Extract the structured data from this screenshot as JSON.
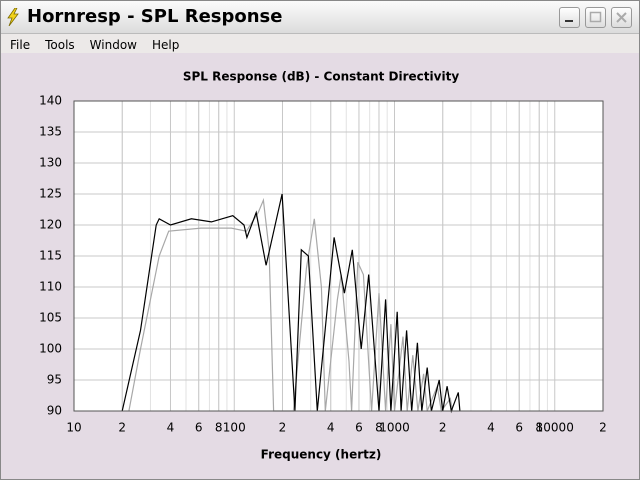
{
  "window": {
    "title": "Hornresp - SPL Response"
  },
  "menu": [
    "File",
    "Tools",
    "Window",
    "Help"
  ],
  "chart_data": {
    "type": "line",
    "title": "SPL Response (dB) - Constant Directivity",
    "x_label": "Frequency (hertz)",
    "x_scale": "log",
    "xlim": [
      10,
      20000
    ],
    "ylim": [
      90,
      140
    ],
    "xticks": [
      10,
      {
        "value": 20,
        "label": "2"
      },
      {
        "value": 40,
        "label": "4"
      },
      {
        "value": 60,
        "label": "6"
      },
      {
        "value": 80,
        "label": "8"
      },
      100,
      {
        "value": 200,
        "label": "2"
      },
      {
        "value": 400,
        "label": "4"
      },
      {
        "value": 600,
        "label": "6"
      },
      {
        "value": 800,
        "label": "8"
      },
      1000,
      {
        "value": 2000,
        "label": "2"
      },
      {
        "value": 4000,
        "label": "4"
      },
      {
        "value": 6000,
        "label": "6"
      },
      {
        "value": 8000,
        "label": "8"
      },
      10000,
      {
        "value": 20000,
        "label": "2"
      }
    ],
    "yticks": [
      90,
      95,
      100,
      105,
      110,
      115,
      120,
      125,
      130,
      135,
      140
    ],
    "grid": true,
    "series": [
      {
        "color": "#000000",
        "x": [
          20,
          26,
          32.6,
          34,
          40,
          54,
          72,
          98,
          115,
          120,
          137,
          158,
          199,
          239,
          262,
          290,
          330,
          420,
          487,
          545,
          620,
          690,
          800,
          880,
          950,
          1040,
          1100,
          1190,
          1280,
          1390,
          1480,
          1600,
          1700,
          1900,
          2000,
          2130,
          2260,
          2500,
          2560
        ],
        "values": [
          90,
          103,
          120,
          121,
          120,
          121,
          120.5,
          121.5,
          120,
          118,
          122,
          113.5,
          125,
          90,
          116,
          115,
          90,
          118,
          109,
          116,
          100,
          112,
          90,
          108,
          90,
          106,
          90,
          103,
          90,
          101,
          90,
          97,
          90,
          95,
          90,
          94,
          90,
          93,
          90
        ]
      },
      {
        "color": "#a8a8a8",
        "x": [
          22,
          26,
          34,
          39,
          62,
          96,
          119,
          141,
          152,
          165,
          176,
          234,
          282,
          316,
          350,
          370,
          440,
          465,
          520,
          540,
          590,
          640,
          720,
          800,
          880,
          950,
          1000,
          1130,
          1200,
          1300,
          1400,
          1520,
          1600,
          1850,
          1960,
          2230,
          2300
        ],
        "values": [
          90,
          100,
          115,
          119,
          119.5,
          119.5,
          119,
          122,
          124,
          116,
          90,
          90,
          113,
          121,
          110,
          90,
          108,
          112,
          98,
          90,
          114,
          112,
          90,
          109,
          90,
          104,
          90,
          102,
          90,
          99,
          90,
          96,
          90,
          94,
          90,
          92,
          90
        ]
      }
    ]
  }
}
